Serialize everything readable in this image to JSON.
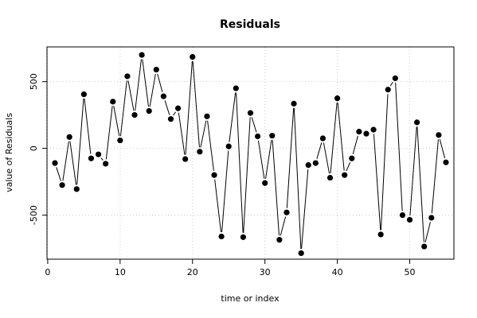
{
  "chart_data": {
    "type": "line",
    "title": "Residuals",
    "xlabel": "time or index",
    "ylabel": "value of Residuals",
    "xlim": [
      -0.1,
      56.1
    ],
    "ylim": [
      -830,
      760
    ],
    "xticks": [
      0,
      10,
      20,
      30,
      40,
      50
    ],
    "yticks": [
      -500,
      0,
      500
    ],
    "grid": true,
    "series": [
      {
        "x": [
          1,
          2,
          3,
          4,
          5,
          6,
          7,
          8,
          9,
          10,
          11,
          12,
          13,
          14,
          15,
          16,
          17,
          18,
          19,
          20,
          21,
          22,
          23,
          24,
          25,
          26,
          27,
          28,
          29,
          30,
          31,
          32,
          33,
          34,
          35,
          36,
          37,
          38,
          39,
          40,
          41,
          42,
          43,
          44,
          45,
          46,
          47,
          48,
          49,
          50,
          51,
          52,
          53,
          54,
          55
        ],
        "values": [
          -110,
          -275,
          85,
          -305,
          405,
          -75,
          -45,
          -115,
          350,
          60,
          540,
          250,
          700,
          280,
          590,
          390,
          220,
          300,
          -80,
          685,
          -25,
          240,
          -200,
          -660,
          15,
          450,
          -665,
          265,
          90,
          -260,
          95,
          -685,
          -480,
          335,
          -785,
          -125,
          -110,
          75,
          -220,
          375,
          -200,
          -75,
          125,
          110,
          140,
          -645,
          440,
          525,
          -500,
          -535,
          195,
          -735,
          -520,
          100,
          -105
        ]
      }
    ]
  }
}
